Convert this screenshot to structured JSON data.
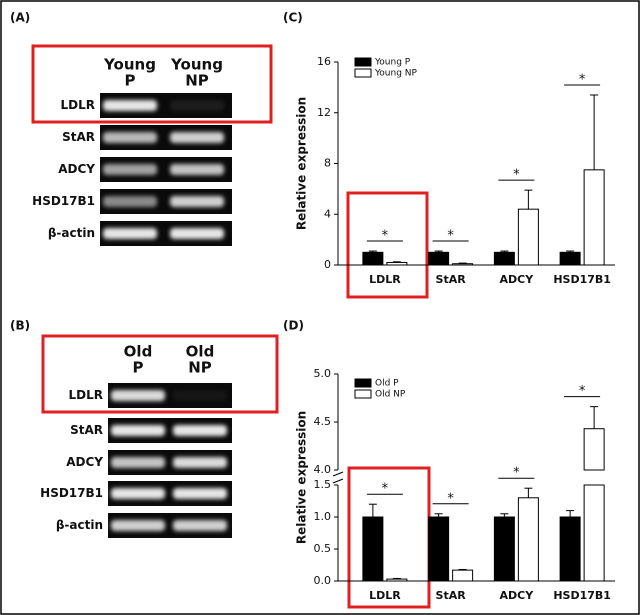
{
  "gels": [
    {
      "label": "(A)",
      "lanes": [
        [
          "Young",
          "P"
        ],
        [
          "Young",
          "NP"
        ]
      ],
      "rows": [
        "LDLR",
        "StAR",
        "ADCY",
        "HSD17B1",
        "β-actin"
      ]
    },
    {
      "label": "(B)",
      "lanes": [
        [
          "Old",
          "P"
        ],
        [
          "Old",
          "NP"
        ]
      ],
      "rows": [
        "LDLR",
        "StAR",
        "ADCY",
        "HSD17B1",
        "β-actin"
      ]
    }
  ],
  "chart_data": [
    {
      "type": "bar",
      "panel_label": "(C)",
      "y_label": "Relative expression",
      "categories": [
        "LDLR",
        "StAR",
        "ADCY",
        "HSD17B1"
      ],
      "series": [
        {
          "name": "Young P",
          "color": "#000000",
          "values": [
            1.0,
            1.0,
            1.0,
            1.0
          ],
          "errors": [
            0.1,
            0.1,
            0.1,
            0.1
          ]
        },
        {
          "name": "Young NP",
          "color": "#ffffff",
          "values": [
            0.2,
            0.1,
            4.4,
            7.5
          ],
          "errors": [
            0.05,
            0.05,
            1.5,
            5.9
          ]
        }
      ],
      "annotations": [
        "*",
        "*",
        "*",
        "*"
      ],
      "ylim": [
        0,
        16
      ],
      "yticks": [
        0,
        4,
        8,
        12,
        16
      ],
      "legend": "upper left"
    },
    {
      "type": "bar",
      "panel_label": "(D)",
      "y_label": "Relative expression",
      "categories": [
        "LDLR",
        "StAR",
        "ADCY",
        "HSD17B1"
      ],
      "series": [
        {
          "name": "Old P",
          "color": "#000000",
          "values": [
            1.0,
            1.0,
            1.0,
            1.0
          ],
          "errors": [
            0.2,
            0.05,
            0.05,
            0.1
          ]
        },
        {
          "name": "Old NP",
          "color": "#ffffff",
          "values": [
            0.03,
            0.17,
            1.3,
            4.43
          ],
          "errors": [
            0.01,
            0.01,
            0.15,
            0.23
          ]
        }
      ],
      "annotations": [
        "*",
        "*",
        "*",
        "*"
      ],
      "ylim": [
        0,
        5
      ],
      "ybreak": [
        1.5,
        4.0
      ],
      "yticks": [
        {
          "value": 0,
          "label": "0.0"
        },
        {
          "value": 0.5,
          "label": "0.5"
        },
        {
          "value": 1,
          "label": "1.0"
        },
        {
          "value": 1.5,
          "label": "1.5"
        },
        {
          "value": 4,
          "label": "4.0"
        },
        {
          "value": 4.5,
          "label": "4.5"
        },
        {
          "value": 5,
          "label": "5.0"
        }
      ],
      "legend": "upper left"
    }
  ]
}
